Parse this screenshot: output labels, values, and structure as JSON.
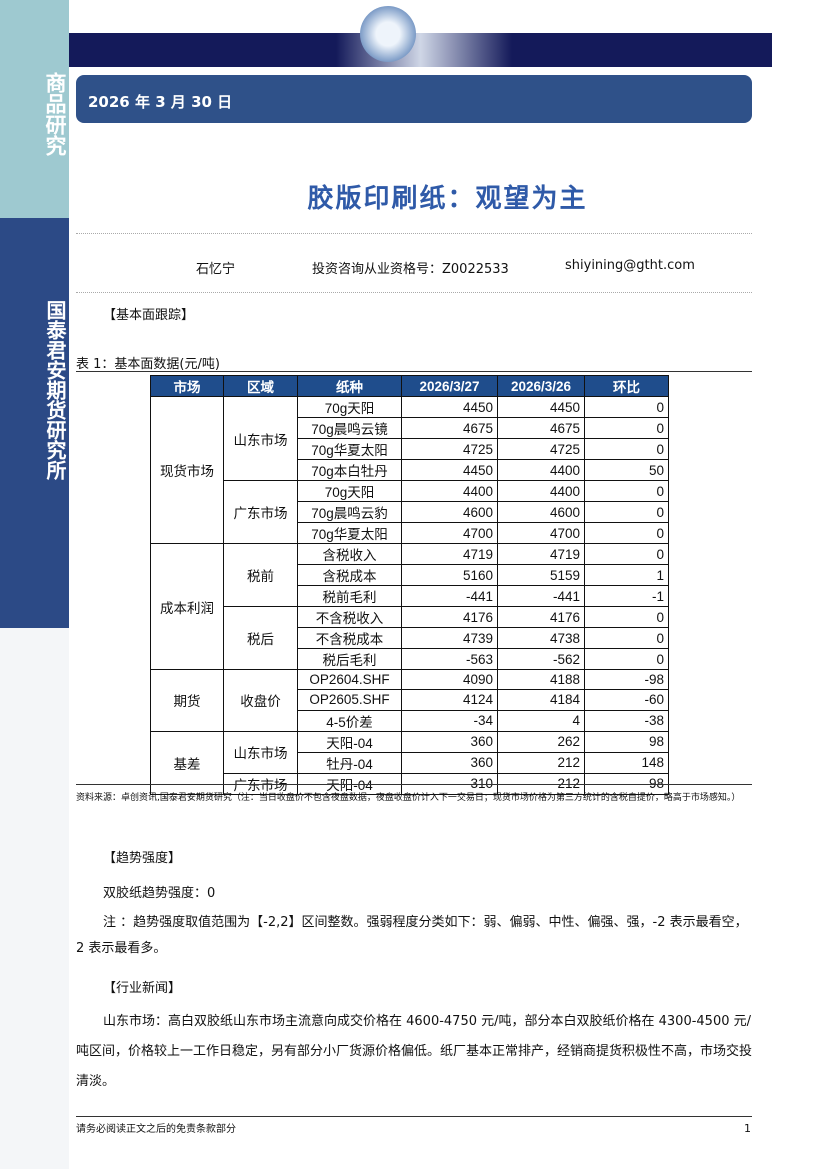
{
  "sidebar": {
    "top": "商品研究",
    "main": "国泰君安期货研究所"
  },
  "date": "2026 年 3 月 30 日",
  "title": "胶版印刷纸：观望为主",
  "author": {
    "name": "石忆宁",
    "license": "投资咨询从业资格号：Z0022533",
    "email": "shiyining@gtht.com"
  },
  "section1": "【基本面跟踪】",
  "table_caption": "表 1：基本面数据(元/吨)",
  "table": {
    "headers": [
      "市场",
      "区域",
      "纸种",
      "2026/3/27",
      "2026/3/26",
      "环比"
    ],
    "groups": [
      {
        "market": "现货市场",
        "regions": [
          {
            "name": "山东市场",
            "rows": [
              [
                "70g天阳",
                "4450",
                "4450",
                "0"
              ],
              [
                "70g晨鸣云镜",
                "4675",
                "4675",
                "0"
              ],
              [
                "70g华夏太阳",
                "4725",
                "4725",
                "0"
              ],
              [
                "70g本白牡丹",
                "4450",
                "4400",
                "50"
              ]
            ]
          },
          {
            "name": "广东市场",
            "rows": [
              [
                "70g天阳",
                "4400",
                "4400",
                "0"
              ],
              [
                "70g晨鸣云豹",
                "4600",
                "4600",
                "0"
              ],
              [
                "70g华夏太阳",
                "4700",
                "4700",
                "0"
              ]
            ]
          }
        ]
      },
      {
        "market": "成本利润",
        "regions": [
          {
            "name": "税前",
            "rows": [
              [
                "含税收入",
                "4719",
                "4719",
                "0"
              ],
              [
                "含税成本",
                "5160",
                "5159",
                "1"
              ],
              [
                "税前毛利",
                "-441",
                "-441",
                "-1"
              ]
            ]
          },
          {
            "name": "税后",
            "rows": [
              [
                "不含税收入",
                "4176",
                "4176",
                "0"
              ],
              [
                "不含税成本",
                "4739",
                "4738",
                "0"
              ],
              [
                "税后毛利",
                "-563",
                "-562",
                "0"
              ]
            ]
          }
        ]
      },
      {
        "market": "期货",
        "regions": [
          {
            "name": "收盘价",
            "rows": [
              [
                "OP2604.SHF",
                "4090",
                "4188",
                "-98"
              ],
              [
                "OP2605.SHF",
                "4124",
                "4184",
                "-60"
              ],
              [
                "4-5价差",
                "-34",
                "4",
                "-38"
              ]
            ]
          }
        ]
      },
      {
        "market": "基差",
        "regions": [
          {
            "name": "山东市场",
            "rows": [
              [
                "天阳-04",
                "360",
                "262",
                "98"
              ],
              [
                "牡丹-04",
                "360",
                "212",
                "148"
              ]
            ]
          },
          {
            "name": "广东市场",
            "rows": [
              [
                "天阳-04",
                "310",
                "212",
                "98"
              ]
            ]
          }
        ]
      }
    ]
  },
  "source_note": "资料来源：卓创资讯,国泰君安期货研究（注：当日收盘价不包含夜盘数据，夜盘收盘价计入下一交易日；现货市场价格为第三方统计的含税自提价，略高于市场感知。）",
  "section2": "【趋势强度】",
  "trend": "双胶纸趋势强度：0",
  "trend_note": "注 ：趋势强度取值范围为【-2,2】区间整数。强弱程度分类如下：弱、偏弱、中性、偏强、强，-2 表示最看空，2 表示最看多。",
  "section3": "【行业新闻】",
  "news": "山东市场：高白双胶纸山东市场主流意向成交价格在 4600-4750 元/吨，部分本白双胶纸价格在 4300-4500 元/吨区间，价格较上一工作日稳定，另有部分小厂货源价格偏低。纸厂基本正常排产，经销商提货积极性不高，市场交投清淡。",
  "footer": "请务必阅读正文之后的免责条款部分",
  "page": "1"
}
